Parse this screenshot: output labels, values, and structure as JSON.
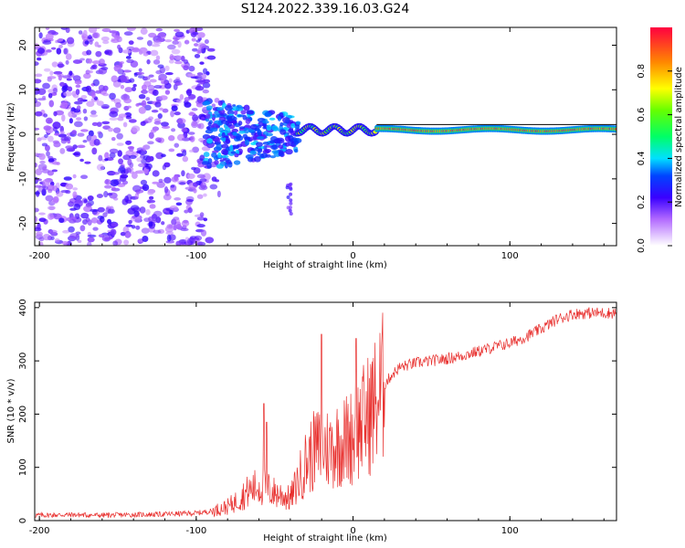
{
  "figure": {
    "title": "S124.2022.339.16.03.G24"
  },
  "colors": {
    "snr_line": "#e8302e",
    "background": "#ffffff",
    "axis": "#000000"
  },
  "chart_data": [
    {
      "type": "heatmap",
      "title": "S124.2022.339.16.03.G24",
      "xlabel": "Height of straight line (km)",
      "ylabel": "Frequency (Hz)",
      "xlim": [
        -203,
        168
      ],
      "ylim": [
        -25,
        24
      ],
      "xticks": [
        -200,
        -100,
        0,
        100
      ],
      "yticks": [
        -20,
        -10,
        0,
        10,
        20
      ],
      "colorbar": {
        "label": "Normalized spectral amplitude",
        "range": [
          0,
          1
        ],
        "ticks": [
          "0.0",
          "0.2",
          "0.4",
          "0.6",
          "0.8"
        ],
        "tick_values": [
          0.0,
          0.2,
          0.4,
          0.6,
          0.8
        ]
      },
      "description_regions": [
        {
          "x_range": [
            -203,
            -95
          ],
          "freq_range": [
            -25,
            24
          ],
          "amplitude": "low, scattered noise"
        },
        {
          "x_range": [
            -95,
            -35
          ],
          "freq_range": [
            -8,
            8
          ],
          "amplitude": "low-medium, clustered"
        },
        {
          "x_range": [
            -35,
            15
          ],
          "freq_range": [
            -2,
            3
          ],
          "amplitude": "medium, narrowing band"
        },
        {
          "x_range": [
            15,
            168
          ],
          "freq_range": [
            0,
            2
          ],
          "amplitude": "high, stable tone near 1 Hz"
        }
      ]
    },
    {
      "type": "line",
      "xlabel": "Height of straight line (km)",
      "ylabel": "SNR (10 * v/v)",
      "xlim": [
        -203,
        168
      ],
      "ylim": [
        0,
        410
      ],
      "xticks": [
        -200,
        -100,
        0,
        100
      ],
      "yticks": [
        0,
        100,
        200,
        300,
        400
      ],
      "series": [
        {
          "name": "SNR",
          "x": [
            -203,
            -180,
            -160,
            -140,
            -120,
            -100,
            -90,
            -80,
            -75,
            -70,
            -65,
            -60,
            -55,
            -50,
            -45,
            -40,
            -35,
            -30,
            -25,
            -20,
            -15,
            -10,
            -5,
            0,
            5,
            10,
            15,
            20,
            25,
            30,
            40,
            50,
            60,
            70,
            80,
            90,
            100,
            110,
            120,
            130,
            140,
            150,
            160,
            168
          ],
          "values": [
            10,
            11,
            10,
            11,
            12,
            14,
            18,
            26,
            35,
            48,
            58,
            65,
            60,
            52,
            48,
            40,
            75,
            110,
            130,
            140,
            135,
            145,
            150,
            160,
            180,
            200,
            225,
            255,
            275,
            288,
            296,
            300,
            304,
            310,
            318,
            326,
            333,
            345,
            360,
            378,
            388,
            390,
            390,
            390
          ]
        }
      ],
      "annotated_spikes": [
        {
          "x": -57,
          "y": 220
        },
        {
          "x": -55,
          "y": 185
        },
        {
          "x": -20,
          "y": 350
        },
        {
          "x": 2,
          "y": 342
        }
      ]
    }
  ]
}
